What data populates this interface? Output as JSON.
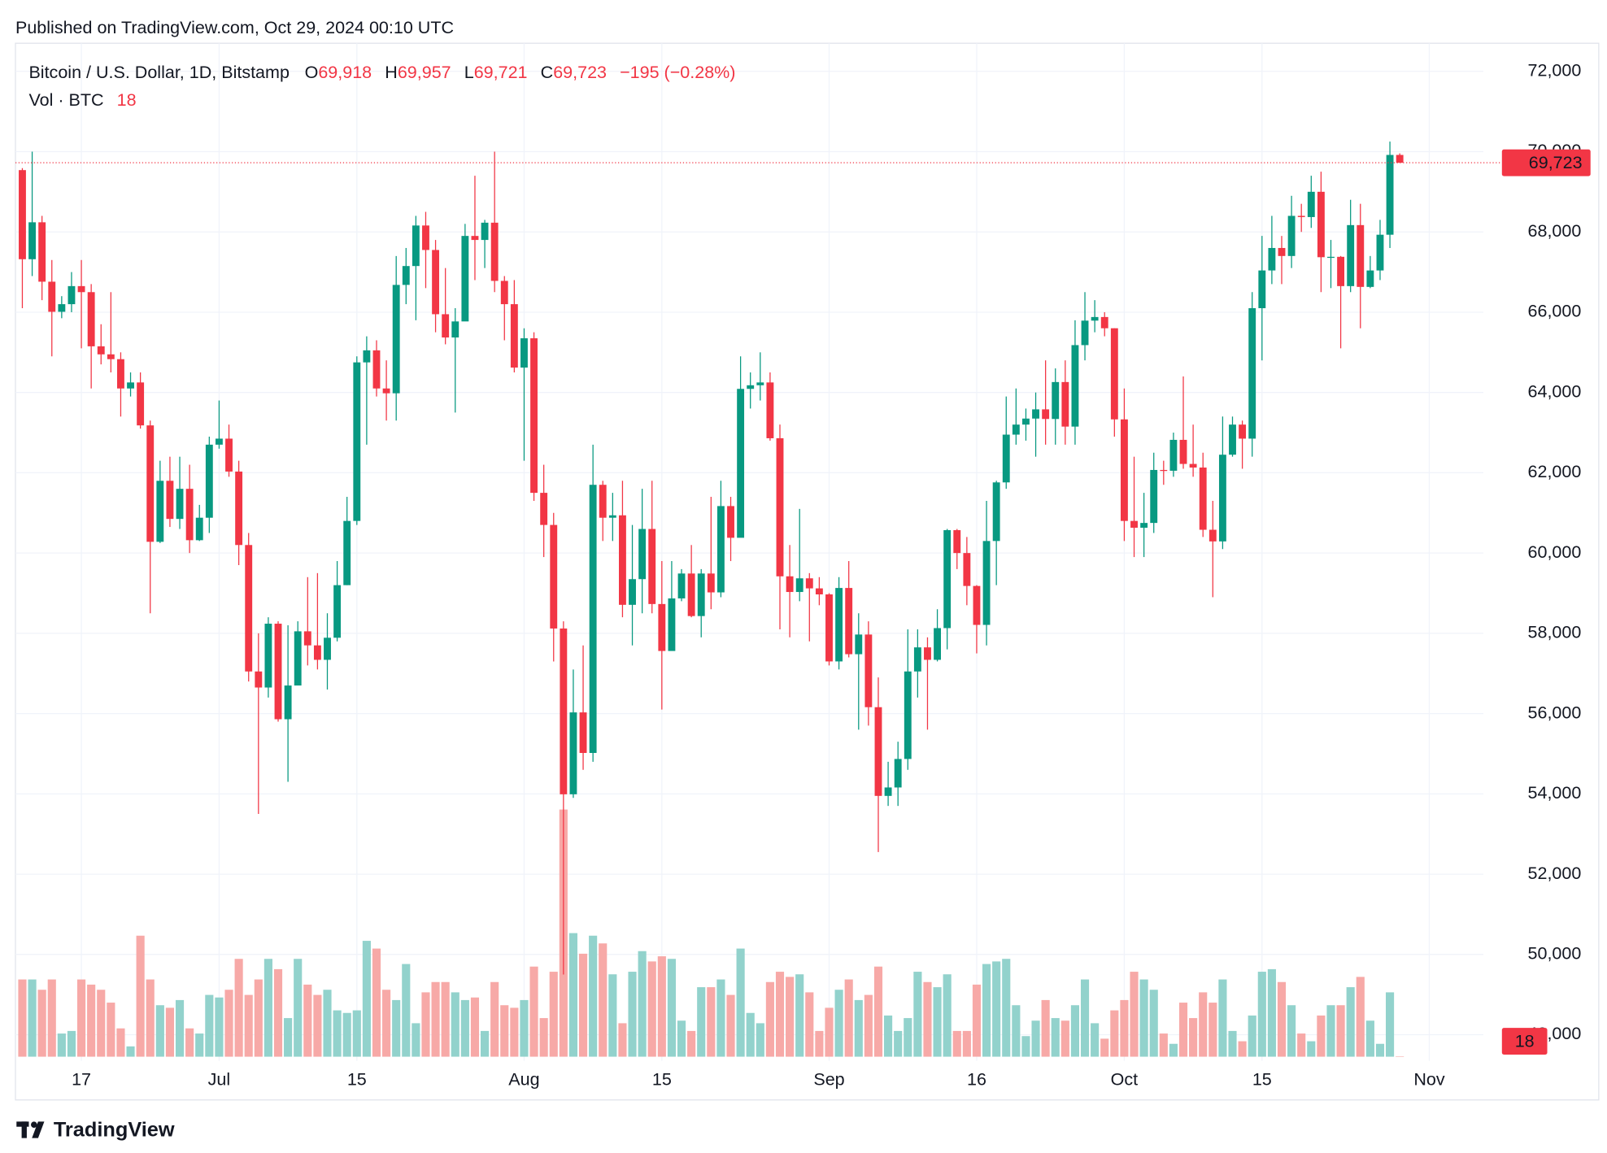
{
  "published": "Published on TradingView.com, Oct 29, 2024 00:10 UTC",
  "legend": {
    "symbol": "Bitcoin / U.S. Dollar, 1D, Bitstamp",
    "o_label": "O",
    "o": "69,918",
    "h_label": "H",
    "h": "69,957",
    "l_label": "L",
    "l": "69,721",
    "c_label": "C",
    "c": "69,723",
    "change": "−195 (−0.28%)",
    "vol_label": "Vol · BTC",
    "vol": "18"
  },
  "brand": "TradingView",
  "chart_data": {
    "type": "candlestick",
    "up_color": "#089981",
    "down_color": "#f23645",
    "vol_up_color": "#92d2cc",
    "vol_down_color": "#f7a9a7",
    "grid": true,
    "x": [
      "Jun 11",
      "Jun 12",
      "Jun 13",
      "Jun 14",
      "Jun 15",
      "Jun 16",
      "Jun 17",
      "Jun 18",
      "Jun 19",
      "Jun 20",
      "Jun 21",
      "Jun 22",
      "Jun 23",
      "Jun 24",
      "Jun 25",
      "Jun 26",
      "Jun 27",
      "Jun 28",
      "Jun 29",
      "Jun 30",
      "Jul 1",
      "Jul 2",
      "Jul 3",
      "Jul 4",
      "Jul 5",
      "Jul 6",
      "Jul 7",
      "Jul 8",
      "Jul 9",
      "Jul 10",
      "Jul 11",
      "Jul 12",
      "Jul 13",
      "Jul 14",
      "Jul 15",
      "Jul 16",
      "Jul 17",
      "Jul 18",
      "Jul 19",
      "Jul 20",
      "Jul 21",
      "Jul 22",
      "Jul 23",
      "Jul 24",
      "Jul 25",
      "Jul 26",
      "Jul 27",
      "Jul 28",
      "Jul 29",
      "Jul 30",
      "Jul 31",
      "Aug 1",
      "Aug 2",
      "Aug 3",
      "Aug 4",
      "Aug 5",
      "Aug 6",
      "Aug 7",
      "Aug 8",
      "Aug 9",
      "Aug 10",
      "Aug 11",
      "Aug 12",
      "Aug 13",
      "Aug 14",
      "Aug 15",
      "Aug 16",
      "Aug 17",
      "Aug 18",
      "Aug 19",
      "Aug 20",
      "Aug 21",
      "Aug 22",
      "Aug 23",
      "Aug 24",
      "Aug 25",
      "Aug 26",
      "Aug 27",
      "Aug 28",
      "Aug 29",
      "Aug 30",
      "Aug 31",
      "Sep 1",
      "Sep 2",
      "Sep 3",
      "Sep 4",
      "Sep 5",
      "Sep 6",
      "Sep 7",
      "Sep 8",
      "Sep 9",
      "Sep 10",
      "Sep 11",
      "Sep 12",
      "Sep 13",
      "Sep 14",
      "Sep 15",
      "Sep 16",
      "Sep 17",
      "Sep 18",
      "Sep 19",
      "Sep 20",
      "Sep 21",
      "Sep 22",
      "Sep 23",
      "Sep 24",
      "Sep 25",
      "Sep 26",
      "Sep 27",
      "Sep 28",
      "Sep 29",
      "Sep 30",
      "Oct 1",
      "Oct 2",
      "Oct 3",
      "Oct 4",
      "Oct 5",
      "Oct 6",
      "Oct 7",
      "Oct 8",
      "Oct 9",
      "Oct 10",
      "Oct 11",
      "Oct 12",
      "Oct 13",
      "Oct 14",
      "Oct 15",
      "Oct 16",
      "Oct 17",
      "Oct 18",
      "Oct 19",
      "Oct 20",
      "Oct 21",
      "Oct 22",
      "Oct 23",
      "Oct 24",
      "Oct 25",
      "Oct 26",
      "Oct 27",
      "Oct 28",
      "Oct 29"
    ],
    "open": [
      69540,
      67320,
      68240,
      66760,
      66010,
      66200,
      66650,
      66500,
      65150,
      64950,
      64830,
      64100,
      64250,
      63180,
      60280,
      61800,
      60850,
      61600,
      60320,
      60880,
      62700,
      62850,
      62030,
      60200,
      57050,
      56650,
      58240,
      55860,
      56700,
      58050,
      57700,
      57340,
      57890,
      59200,
      60800,
      64750,
      65050,
      64100,
      63980,
      66680,
      67150,
      68160,
      67550,
      65950,
      65370,
      65770,
      67900,
      67800,
      68230,
      66780,
      66200,
      64620,
      65350,
      61500,
      60700,
      58120,
      53990,
      56030,
      55020,
      61700,
      60880,
      60940,
      58710,
      59350,
      60600,
      58730,
      57560,
      58870,
      59490,
      58430,
      59490,
      59020,
      61170,
      60380,
      64090,
      64180,
      64250,
      62860,
      59420,
      59030,
      59370,
      59120,
      58970,
      57300,
      59130,
      57480,
      57970,
      56160,
      53950,
      54160,
      54870,
      57050,
      57650,
      57340,
      58130,
      60570,
      60000,
      59180,
      58210,
      60300,
      61760,
      62950,
      63200,
      63350,
      63580,
      63340,
      64260,
      63150,
      65180,
      65790,
      65880,
      65600,
      63330,
      60800,
      60630,
      60750,
      62070,
      62050,
      62820,
      62220,
      62130,
      60580,
      60290,
      62450,
      63200,
      62850,
      66100,
      67040,
      67600,
      67400,
      68400,
      68370,
      69000,
      67370,
      67380,
      66650,
      68170,
      66630,
      67040,
      67930,
      69918
    ],
    "high": [
      69590,
      70000,
      68400,
      67300,
      66400,
      67000,
      67300,
      66700,
      65700,
      66500,
      65000,
      64500,
      64500,
      63300,
      62300,
      62400,
      62400,
      62200,
      61200,
      62900,
      63800,
      63200,
      62300,
      60500,
      58000,
      58400,
      58300,
      58200,
      58300,
      59400,
      59500,
      58500,
      59800,
      61400,
      64900,
      65400,
      65300,
      64800,
      67400,
      67600,
      68400,
      68500,
      67800,
      67100,
      66100,
      68200,
      69400,
      68300,
      70000,
      66900,
      66800,
      65600,
      65500,
      62200,
      61000,
      58300,
      57100,
      57700,
      62700,
      61800,
      61500,
      61800,
      60700,
      61600,
      61800,
      59800,
      59800,
      59600,
      60200,
      59600,
      61400,
      61800,
      61400,
      64900,
      64500,
      65000,
      64500,
      63200,
      60200,
      61100,
      59500,
      59400,
      59000,
      59400,
      59800,
      58500,
      58300,
      56900,
      54800,
      55300,
      58100,
      58100,
      57900,
      58600,
      60600,
      60600,
      60400,
      59200,
      61300,
      61800,
      63900,
      64100,
      63600,
      64000,
      64800,
      64600,
      64800,
      65800,
      66500,
      66300,
      66000,
      65600,
      64100,
      62400,
      61500,
      62500,
      62300,
      63000,
      64400,
      63200,
      62500,
      61300,
      63400,
      63400,
      63300,
      66500,
      67900,
      68400,
      67900,
      68900,
      68700,
      69400,
      69500,
      67800,
      67400,
      68800,
      68700,
      67400,
      68300,
      70250,
      69957
    ],
    "low": [
      66100,
      66900,
      66300,
      64900,
      65850,
      66000,
      65100,
      64100,
      64700,
      64500,
      63400,
      63900,
      63100,
      58500,
      60250,
      60650,
      60600,
      60000,
      60300,
      60500,
      62600,
      61900,
      59700,
      56800,
      53500,
      56400,
      55800,
      54300,
      56900,
      57200,
      57100,
      56600,
      57800,
      59200,
      60700,
      62700,
      63900,
      63300,
      63300,
      66200,
      65800,
      66600,
      65500,
      65200,
      63500,
      65800,
      66800,
      67100,
      66500,
      65300,
      64500,
      62300,
      61300,
      59900,
      57300,
      49500,
      53900,
      54600,
      54800,
      60300,
      60300,
      58400,
      57700,
      58500,
      58500,
      56100,
      57700,
      58800,
      58400,
      57900,
      58600,
      58900,
      59800,
      60400,
      63600,
      63800,
      62800,
      58100,
      57900,
      58800,
      57800,
      58700,
      57200,
      57100,
      57400,
      55600,
      55700,
      52550,
      53700,
      53700,
      54600,
      56400,
      55600,
      57300,
      57600,
      59600,
      58700,
      57500,
      57700,
      59200,
      61600,
      62700,
      62800,
      62400,
      62700,
      62700,
      62700,
      62700,
      64800,
      65500,
      65400,
      62900,
      60300,
      59900,
      59900,
      60500,
      61700,
      61900,
      62100,
      61900,
      60400,
      58900,
      60100,
      62400,
      62100,
      62400,
      64800,
      66700,
      66700,
      67100,
      68000,
      68100,
      66500,
      66600,
      65100,
      66500,
      65600,
      66600,
      66800,
      67600,
      69721
    ],
    "close": [
      67320,
      68240,
      66760,
      66010,
      66200,
      66650,
      66500,
      65150,
      64950,
      64830,
      64100,
      64250,
      63180,
      60280,
      61800,
      60850,
      61600,
      60320,
      60880,
      62700,
      62850,
      62030,
      60200,
      57050,
      56650,
      58240,
      55860,
      56700,
      58050,
      57700,
      57340,
      57890,
      59200,
      60800,
      64750,
      65050,
      64100,
      63980,
      66680,
      67150,
      68160,
      67550,
      65950,
      65370,
      65770,
      67900,
      67800,
      68230,
      66780,
      66200,
      64620,
      65350,
      61500,
      60700,
      58120,
      53990,
      56030,
      55020,
      61700,
      60880,
      60940,
      58710,
      59350,
      60600,
      58730,
      57560,
      58870,
      59490,
      58430,
      59490,
      59020,
      61170,
      60380,
      64090,
      64180,
      64250,
      62860,
      59420,
      59030,
      59370,
      59120,
      58970,
      57300,
      59130,
      57480,
      57970,
      56160,
      53950,
      54160,
      54870,
      57050,
      57650,
      57340,
      58130,
      60570,
      60000,
      59180,
      58210,
      60300,
      61760,
      62950,
      63200,
      63350,
      63580,
      63340,
      64260,
      63150,
      65180,
      65790,
      65880,
      65600,
      63330,
      60800,
      60630,
      60750,
      62070,
      62050,
      62820,
      62220,
      62130,
      60580,
      60290,
      62450,
      63200,
      62850,
      66100,
      67040,
      67600,
      67400,
      68400,
      68370,
      69000,
      67370,
      67380,
      66650,
      68170,
      66630,
      67040,
      67930,
      69918,
      69723
    ],
    "volume": [
      3000,
      3000,
      2600,
      3000,
      900,
      1000,
      3000,
      2800,
      2600,
      2100,
      1100,
      400,
      4700,
      3000,
      2000,
      1900,
      2200,
      1100,
      900,
      2400,
      2300,
      2600,
      3800,
      2400,
      3000,
      3800,
      3400,
      1500,
      3800,
      2800,
      2400,
      2600,
      1800,
      1700,
      1800,
      4500,
      4200,
      2600,
      2200,
      3600,
      1300,
      2500,
      2900,
      2900,
      2500,
      2200,
      2300,
      1000,
      2900,
      2000,
      1900,
      2200,
      3500,
      1500,
      3300,
      9600,
      4800,
      4000,
      4700,
      4400,
      3200,
      1300,
      3300,
      4100,
      3700,
      3900,
      3800,
      1400,
      1000,
      2700,
      2700,
      3000,
      2400,
      4200,
      1700,
      1300,
      2900,
      3300,
      3100,
      3200,
      2500,
      1000,
      1900,
      2600,
      3000,
      2200,
      2400,
      3500,
      1600,
      1000,
      1500,
      3300,
      2900,
      2700,
      3200,
      1000,
      1000,
      2800,
      3600,
      3700,
      3800,
      2000,
      800,
      1400,
      2200,
      1500,
      1400,
      2000,
      3000,
      1300,
      700,
      1800,
      2200,
      3300,
      3000,
      2600,
      900,
      500,
      2100,
      1500,
      2500,
      2100,
      3000,
      1000,
      600,
      1600,
      3300,
      3400,
      2900,
      2000,
      900,
      600,
      1600,
      2000,
      2000,
      2700,
      3100,
      1400,
      500,
      2500,
      18
    ],
    "xlim": [
      -0.7,
      148.5
    ],
    "xticks": [
      {
        "value": 6,
        "label": "17"
      },
      {
        "value": 20,
        "label": "Jul"
      },
      {
        "value": 34,
        "label": "15"
      },
      {
        "value": 51,
        "label": "Aug"
      },
      {
        "value": 65,
        "label": "15"
      },
      {
        "value": 82,
        "label": "Sep"
      },
      {
        "value": 97,
        "label": "16"
      },
      {
        "value": 112,
        "label": "Oct"
      },
      {
        "value": 126,
        "label": "15"
      },
      {
        "value": 143,
        "label": "Nov"
      }
    ],
    "ylim": [
      47350,
      72700
    ],
    "yticks": [
      {
        "value": 48000,
        "label": "48,000"
      },
      {
        "value": 50000,
        "label": "50,000"
      },
      {
        "value": 52000,
        "label": "52,000"
      },
      {
        "value": 54000,
        "label": "54,000"
      },
      {
        "value": 56000,
        "label": "56,000"
      },
      {
        "value": 58000,
        "label": "58,000"
      },
      {
        "value": 60000,
        "label": "60,000"
      },
      {
        "value": 62000,
        "label": "62,000"
      },
      {
        "value": 64000,
        "label": "64,000"
      },
      {
        "value": 66000,
        "label": "66,000"
      },
      {
        "value": 68000,
        "label": "68,000"
      },
      {
        "value": 70000,
        "label": "70,000"
      },
      {
        "value": 72000,
        "label": "72,000"
      }
    ],
    "vol_ylim": [
      0,
      10000
    ],
    "last_price": {
      "value": 69723,
      "label": "69,723"
    }
  }
}
